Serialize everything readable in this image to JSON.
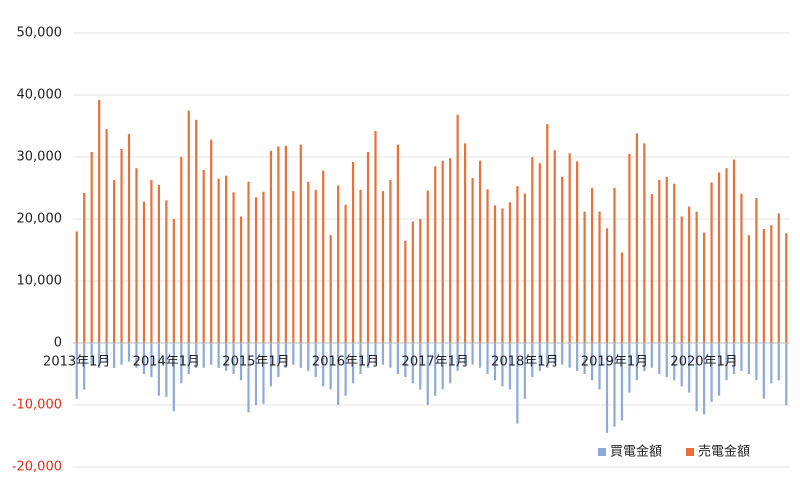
{
  "chart_data": {
    "type": "bar",
    "categories": [
      "2013年1月",
      null,
      null,
      null,
      null,
      null,
      null,
      null,
      null,
      null,
      null,
      null,
      "2014年1月",
      null,
      null,
      null,
      null,
      null,
      null,
      null,
      null,
      null,
      null,
      null,
      "2015年1月",
      null,
      null,
      null,
      null,
      null,
      null,
      null,
      null,
      null,
      null,
      null,
      "2016年1月",
      null,
      null,
      null,
      null,
      null,
      null,
      null,
      null,
      null,
      null,
      null,
      "2017年1月",
      null,
      null,
      null,
      null,
      null,
      null,
      null,
      null,
      null,
      null,
      null,
      "2018年1月",
      null,
      null,
      null,
      null,
      null,
      null,
      null,
      null,
      null,
      null,
      null,
      "2019年1月",
      null,
      null,
      null,
      null,
      null,
      null,
      null,
      null,
      null,
      null,
      null,
      "2020年1月",
      null,
      null,
      null,
      null,
      null,
      null,
      null,
      null,
      null,
      null,
      null
    ],
    "series": [
      {
        "name": "買電金額",
        "color": "#8eaadb",
        "values": [
          -9000,
          -7500,
          -3500,
          -4000,
          -3000,
          -4000,
          -3500,
          -3000,
          -4000,
          -5000,
          -5500,
          -8500,
          -8700,
          -11000,
          -6500,
          -5000,
          -4000,
          -4000,
          -3500,
          -4000,
          -4500,
          -5000,
          -6000,
          -11200,
          -10000,
          -9800,
          -7000,
          -5500,
          -4000,
          -3500,
          -4000,
          -4500,
          -5500,
          -7000,
          -7500,
          -10000,
          -8500,
          -6500,
          -5000,
          -4000,
          -3500,
          -3500,
          -4000,
          -5000,
          -5500,
          -6500,
          -7500,
          -10000,
          -8500,
          -7500,
          -6500,
          -4500,
          -3500,
          -3500,
          -4000,
          -5000,
          -6000,
          -7000,
          -7500,
          -13000,
          -9000,
          -5500,
          -4500,
          -4000,
          -3500,
          -3500,
          -4000,
          -4500,
          -5000,
          -6000,
          -7500,
          -14500,
          -13500,
          -12500,
          -8000,
          -6000,
          -4500,
          -4000,
          -5000,
          -5500,
          -6000,
          -7000,
          -8000,
          -11000,
          -11500,
          -9500,
          -8500,
          -6000,
          -5000,
          -4500,
          -5000,
          -6000,
          -9000,
          -6500,
          -6000,
          -10000
        ]
      },
      {
        "name": "売電金額",
        "color": "#e8703a",
        "values": [
          18000,
          24200,
          30800,
          39200,
          34500,
          26300,
          31300,
          33700,
          28200,
          22800,
          26300,
          25500,
          23000,
          20000,
          30000,
          37500,
          36000,
          27900,
          32800,
          26500,
          27000,
          24300,
          20400,
          26000,
          23500,
          24400,
          31000,
          31700,
          31800,
          24500,
          32000,
          26000,
          24700,
          27800,
          17400,
          25400,
          22300,
          29200,
          24700,
          30800,
          34200,
          24500,
          26300,
          32000,
          16500,
          19600,
          20000,
          24600,
          28500,
          29400,
          29800,
          36800,
          32200,
          26600,
          29400,
          24800,
          22200,
          21700,
          22700,
          25300,
          24100,
          30000,
          29000,
          35300,
          31100,
          26800,
          30600,
          29300,
          21200,
          25000,
          21200,
          18500,
          25000,
          14600,
          30500,
          33800,
          32200,
          24000,
          26300,
          26800,
          25700,
          20400,
          22000,
          21200,
          17800,
          25900,
          27500,
          28200,
          29600,
          24100,
          17400,
          23400,
          18400,
          19000,
          20900,
          17700
        ]
      }
    ],
    "ylim": [
      -20000,
      50000
    ],
    "yticks": [
      {
        "value": -20000,
        "label": "-20,000"
      },
      {
        "value": -10000,
        "label": "-10,000"
      },
      0,
      {
        "value": 10000,
        "label": "10,000"
      },
      {
        "value": 20000,
        "label": "20,000"
      },
      {
        "value": 30000,
        "label": "30,000"
      },
      {
        "value": 40000,
        "label": "40,000"
      },
      {
        "value": 50000,
        "label": "50,000"
      }
    ],
    "negative_tick_color": "#e0301e",
    "grid": true,
    "legend": "bottom-right"
  }
}
